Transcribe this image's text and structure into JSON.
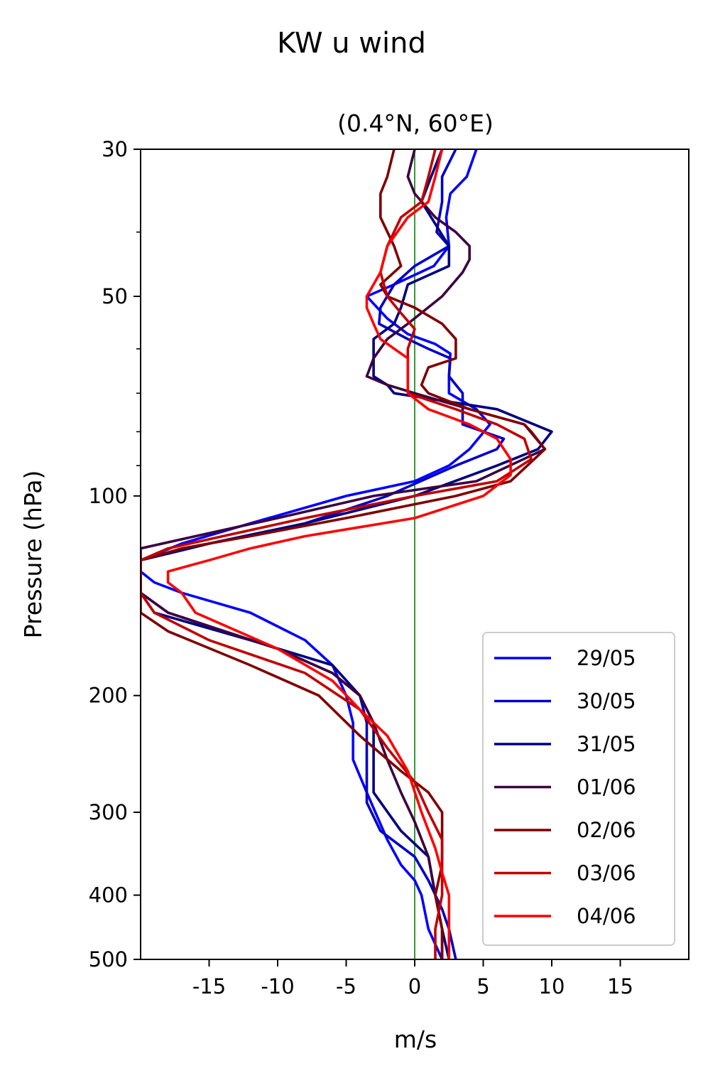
{
  "chart_data": {
    "type": "line",
    "title": "KW u wind",
    "subtitle": "(0.4°N, 60°E)",
    "xlabel": "m/s",
    "ylabel": "Pressure (hPa)",
    "xlim": [
      -20,
      20
    ],
    "ylim": [
      500,
      30
    ],
    "y_scale": "log",
    "xticks": [
      -15,
      -10,
      -5,
      0,
      5,
      10,
      15
    ],
    "xtick_labels": [
      "-15",
      "-10",
      "-5",
      "0",
      "5",
      "10",
      "15"
    ],
    "yticks": [
      30,
      50,
      100,
      200,
      300,
      400,
      500
    ],
    "ytick_labels": [
      "30",
      "50",
      "100",
      "200",
      "300",
      "400",
      "500"
    ],
    "yminor_ticks": [
      40,
      60,
      70,
      80,
      90
    ],
    "grid": false,
    "legend_position": "bottom-right",
    "reference_line": {
      "x": 0,
      "color": "#008000"
    },
    "series": [
      {
        "name": "29/05",
        "color": "#0000ff",
        "points": [
          [
            4.5,
            30
          ],
          [
            3.8,
            33
          ],
          [
            2.6,
            35
          ],
          [
            2.3,
            38
          ],
          [
            2.5,
            42
          ],
          [
            1.4,
            45
          ],
          [
            -1.5,
            48
          ],
          [
            -3.5,
            50
          ],
          [
            -2,
            54
          ],
          [
            -0.5,
            57
          ],
          [
            1.5,
            59
          ],
          [
            2.6,
            61
          ],
          [
            2.5,
            66
          ],
          [
            2.5,
            70
          ],
          [
            4.5,
            74
          ],
          [
            5.5,
            78
          ],
          [
            4,
            85
          ],
          [
            2.5,
            90
          ],
          [
            0,
            95
          ],
          [
            -5,
            100
          ],
          [
            -12,
            110
          ],
          [
            -17,
            118
          ],
          [
            -20,
            125
          ],
          [
            -20,
            130
          ],
          [
            -19,
            135
          ],
          [
            -17,
            140
          ],
          [
            -12,
            150
          ],
          [
            -8,
            165
          ],
          [
            -6,
            180
          ],
          [
            -5,
            200
          ],
          [
            -4.5,
            220
          ],
          [
            -4.5,
            250
          ],
          [
            -3.5,
            280
          ],
          [
            -2,
            330
          ],
          [
            -1,
            360
          ],
          [
            0,
            380
          ],
          [
            0.5,
            400
          ],
          [
            1,
            450
          ],
          [
            2,
            500
          ]
        ]
      },
      {
        "name": "30/05",
        "color": "#0000c8",
        "points": [
          [
            3,
            30
          ],
          [
            2,
            33
          ],
          [
            2,
            36
          ],
          [
            1.6,
            40
          ],
          [
            2.5,
            42
          ],
          [
            0,
            45
          ],
          [
            -1.5,
            48
          ],
          [
            -2.5,
            52
          ],
          [
            -2.6,
            55
          ],
          [
            -0.5,
            58
          ],
          [
            1,
            60
          ],
          [
            2.6,
            62
          ],
          [
            2.5,
            66
          ],
          [
            3.5,
            70
          ],
          [
            3.5,
            74
          ],
          [
            3.5,
            78
          ],
          [
            6.5,
            82
          ],
          [
            6,
            85
          ],
          [
            3,
            90
          ],
          [
            -2,
            100
          ],
          [
            -8,
            110
          ],
          [
            -15,
            118
          ],
          [
            -20,
            125
          ],
          [
            -20,
            130
          ],
          [
            -20,
            135
          ],
          [
            -20,
            140
          ],
          [
            -18,
            150
          ],
          [
            -10,
            170
          ],
          [
            -6,
            185
          ],
          [
            -4,
            200
          ],
          [
            -3.5,
            220
          ],
          [
            -3.5,
            250
          ],
          [
            -3.5,
            290
          ],
          [
            -2.5,
            320
          ],
          [
            0,
            350
          ],
          [
            1,
            380
          ],
          [
            2,
            420
          ],
          [
            2.5,
            450
          ],
          [
            3,
            500
          ]
        ]
      },
      {
        "name": "31/05",
        "color": "#000080",
        "points": [
          [
            2,
            30
          ],
          [
            1.2,
            33
          ],
          [
            0.5,
            36
          ],
          [
            1.2,
            38
          ],
          [
            2.5,
            42
          ],
          [
            2.5,
            45
          ],
          [
            -0.5,
            48
          ],
          [
            -1,
            52
          ],
          [
            -1.5,
            55
          ],
          [
            -3,
            58
          ],
          [
            -3,
            62
          ],
          [
            -3,
            66
          ],
          [
            -2,
            68
          ],
          [
            -1.5,
            70
          ],
          [
            6,
            74
          ],
          [
            10,
            80
          ],
          [
            9,
            85
          ],
          [
            6,
            90
          ],
          [
            0,
            100
          ],
          [
            -8,
            110
          ],
          [
            -15,
            118
          ],
          [
            -20,
            125
          ],
          [
            -20,
            130
          ],
          [
            -20,
            135
          ],
          [
            -20,
            140
          ],
          [
            -19,
            150
          ],
          [
            -12,
            165
          ],
          [
            -6,
            180
          ],
          [
            -4,
            200
          ],
          [
            -3,
            220
          ],
          [
            -3,
            250
          ],
          [
            -3,
            280
          ],
          [
            -1,
            320
          ],
          [
            1,
            350
          ],
          [
            1.5,
            400
          ],
          [
            2,
            450
          ],
          [
            2.5,
            500
          ]
        ]
      },
      {
        "name": "01/06",
        "color": "#3c0040",
        "points": [
          [
            0,
            30
          ],
          [
            -0.5,
            33
          ],
          [
            0,
            35
          ],
          [
            1.5,
            38
          ],
          [
            3,
            40
          ],
          [
            4,
            42
          ],
          [
            4,
            44
          ],
          [
            3.5,
            46
          ],
          [
            2,
            50
          ],
          [
            -0.5,
            55
          ],
          [
            -2,
            58
          ],
          [
            -3,
            62
          ],
          [
            -3.5,
            66
          ],
          [
            -2,
            68
          ],
          [
            0,
            70
          ],
          [
            4,
            74
          ],
          [
            8,
            78
          ],
          [
            9.5,
            85
          ],
          [
            4.5,
            95
          ],
          [
            -3,
            100
          ],
          [
            -10,
            108
          ],
          [
            -16,
            115
          ],
          [
            -20,
            120
          ],
          [
            -20,
            125
          ],
          [
            -20,
            130
          ],
          [
            -20,
            135
          ],
          [
            -20,
            140
          ],
          [
            -18,
            150
          ],
          [
            -10,
            170
          ],
          [
            -6,
            185
          ],
          [
            -4,
            200
          ],
          [
            -3,
            220
          ],
          [
            -2,
            250
          ],
          [
            -1,
            280
          ],
          [
            0,
            310
          ],
          [
            1,
            350
          ],
          [
            1.5,
            400
          ],
          [
            2,
            450
          ],
          [
            2,
            500
          ]
        ]
      },
      {
        "name": "02/06",
        "color": "#800000",
        "points": [
          [
            -1.5,
            30
          ],
          [
            -2,
            33
          ],
          [
            -2.5,
            35
          ],
          [
            -2.5,
            38
          ],
          [
            -1.5,
            42
          ],
          [
            -1,
            45
          ],
          [
            -2.5,
            48
          ],
          [
            -2,
            50
          ],
          [
            0,
            52
          ],
          [
            2,
            55
          ],
          [
            3,
            58
          ],
          [
            3,
            62
          ],
          [
            1,
            64
          ],
          [
            0.5,
            68
          ],
          [
            1,
            70
          ],
          [
            4,
            74
          ],
          [
            8,
            78
          ],
          [
            8.5,
            80
          ],
          [
            9.5,
            85
          ],
          [
            7,
            95
          ],
          [
            3,
            100
          ],
          [
            -5,
            108
          ],
          [
            -12,
            115
          ],
          [
            -17,
            120
          ],
          [
            -20,
            125
          ],
          [
            -20,
            130
          ],
          [
            -20,
            135
          ],
          [
            -20,
            140
          ],
          [
            -20,
            150
          ],
          [
            -18,
            160
          ],
          [
            -12,
            180
          ],
          [
            -7,
            200
          ],
          [
            -4,
            230
          ],
          [
            -1,
            260
          ],
          [
            1,
            280
          ],
          [
            2,
            300
          ],
          [
            2,
            330
          ],
          [
            2,
            360
          ],
          [
            1.5,
            400
          ],
          [
            2,
            450
          ],
          [
            2,
            500
          ]
        ]
      },
      {
        "name": "03/06",
        "color": "#c00000",
        "points": [
          [
            1.5,
            30
          ],
          [
            1,
            33
          ],
          [
            0.5,
            36
          ],
          [
            -1,
            38
          ],
          [
            -2,
            42
          ],
          [
            -2.5,
            46
          ],
          [
            -2,
            50
          ],
          [
            -1,
            53
          ],
          [
            0,
            56
          ],
          [
            -0.5,
            60
          ],
          [
            -0.5,
            63
          ],
          [
            -0.5,
            66
          ],
          [
            -0.5,
            68
          ],
          [
            -0.5,
            70
          ],
          [
            3,
            74
          ],
          [
            6,
            78
          ],
          [
            8,
            82
          ],
          [
            8.5,
            88
          ],
          [
            6,
            95
          ],
          [
            0,
            100
          ],
          [
            -8,
            108
          ],
          [
            -14,
            115
          ],
          [
            -18,
            120
          ],
          [
            -20,
            125
          ],
          [
            -20,
            130
          ],
          [
            -20,
            135
          ],
          [
            -20,
            140
          ],
          [
            -19,
            150
          ],
          [
            -15,
            165
          ],
          [
            -8,
            185
          ],
          [
            -4,
            210
          ],
          [
            -2,
            240
          ],
          [
            0,
            270
          ],
          [
            1,
            300
          ],
          [
            2,
            330
          ],
          [
            2,
            360
          ],
          [
            2,
            400
          ],
          [
            1.5,
            450
          ],
          [
            1.5,
            500
          ]
        ]
      },
      {
        "name": "04/06",
        "color": "#ff0000",
        "points": [
          [
            2,
            30
          ],
          [
            1.5,
            33
          ],
          [
            1,
            36
          ],
          [
            -0.5,
            38
          ],
          [
            -2,
            42
          ],
          [
            -2.5,
            46
          ],
          [
            -3.5,
            50
          ],
          [
            -3.5,
            52
          ],
          [
            -3,
            55
          ],
          [
            -2.5,
            58
          ],
          [
            -0.5,
            62
          ],
          [
            -0.5,
            66
          ],
          [
            -0.5,
            68
          ],
          [
            -0.5,
            70
          ],
          [
            1,
            74
          ],
          [
            4,
            78
          ],
          [
            6,
            82
          ],
          [
            7,
            88
          ],
          [
            7,
            93
          ],
          [
            5,
            100
          ],
          [
            0,
            108
          ],
          [
            -8,
            115
          ],
          [
            -12,
            120
          ],
          [
            -15,
            125
          ],
          [
            -18,
            130
          ],
          [
            -18,
            135
          ],
          [
            -17,
            140
          ],
          [
            -16,
            150
          ],
          [
            -10,
            170
          ],
          [
            -6,
            190
          ],
          [
            -4,
            210
          ],
          [
            -2,
            230
          ],
          [
            -0.5,
            260
          ],
          [
            0.5,
            300
          ],
          [
            1.5,
            340
          ],
          [
            2,
            370
          ],
          [
            2.5,
            400
          ],
          [
            2.5,
            450
          ],
          [
            2.5,
            500
          ]
        ]
      }
    ]
  }
}
